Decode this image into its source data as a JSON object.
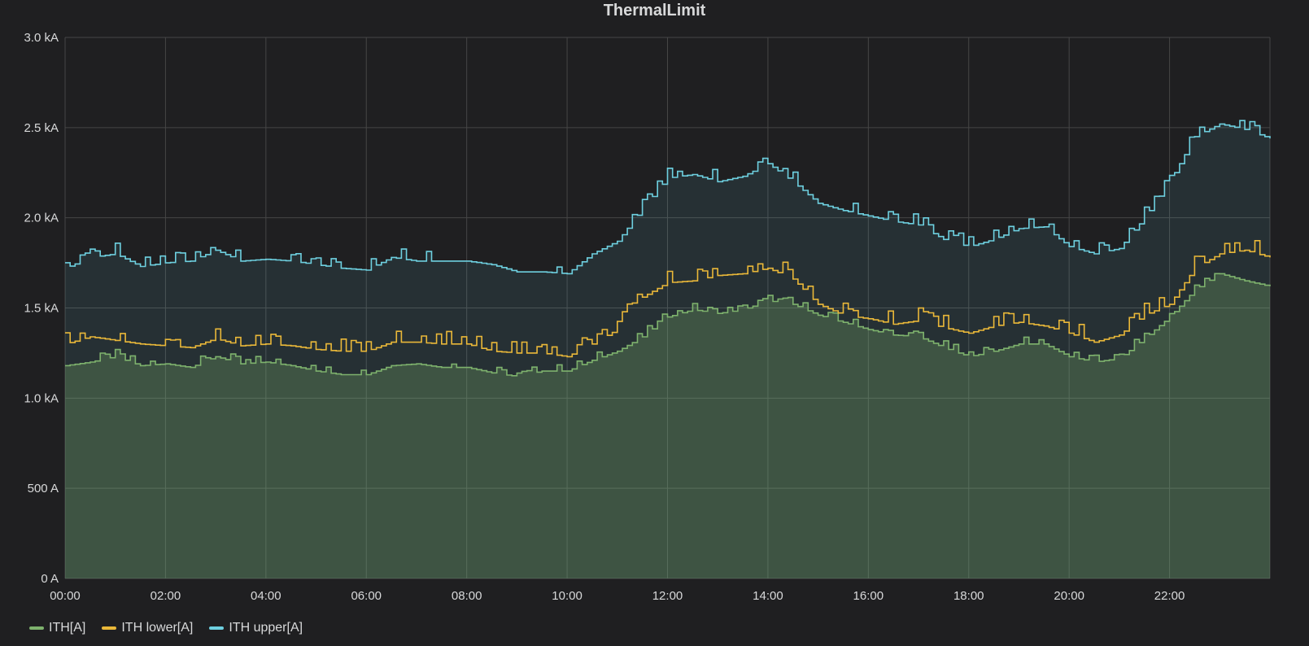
{
  "panel": {
    "title": "ThermalLimit"
  },
  "colors": {
    "ith": "#7eb26d",
    "ith_lower": "#eab839",
    "ith_upper": "#6ed0e0",
    "grid": "#464646",
    "text": "#d8d9da"
  },
  "chart_data": {
    "type": "line",
    "title": "ThermalLimit",
    "xlabel": "",
    "ylabel": "",
    "x_unit": "hour",
    "xlim": [
      0,
      24
    ],
    "x_ticks": [
      0,
      2,
      4,
      6,
      8,
      10,
      12,
      14,
      16,
      18,
      20,
      22
    ],
    "x_tick_labels": [
      "00:00",
      "02:00",
      "04:00",
      "06:00",
      "08:00",
      "10:00",
      "12:00",
      "14:00",
      "16:00",
      "18:00",
      "20:00",
      "22:00"
    ],
    "ylim": [
      0,
      3000
    ],
    "y_ticks": [
      0,
      500,
      1000,
      1500,
      2000,
      2500,
      3000
    ],
    "y_tick_labels": [
      "0 A",
      "500 A",
      "1.0 kA",
      "1.5 kA",
      "2.0 kA",
      "2.5 kA",
      "3.0 kA"
    ],
    "grid": true,
    "legend_position": "bottom-left",
    "series": [
      {
        "name": "ITH[A]",
        "color": "#7eb26d",
        "fill": true,
        "x": [
          0,
          0.5,
          1,
          1.5,
          2,
          2.5,
          3,
          3.5,
          4,
          4.5,
          5,
          5.5,
          6,
          6.5,
          7,
          7.5,
          8,
          8.5,
          9,
          9.5,
          10,
          10.5,
          11,
          11.5,
          12,
          12.5,
          13,
          13.5,
          14,
          14.5,
          15,
          15.5,
          16,
          16.5,
          17,
          17.5,
          18,
          18.5,
          19,
          19.5,
          20,
          20.5,
          21,
          21.5,
          22,
          22.5,
          23,
          23.5,
          24
        ],
        "values": [
          1180,
          1200,
          1230,
          1180,
          1190,
          1170,
          1230,
          1190,
          1200,
          1180,
          1150,
          1130,
          1130,
          1180,
          1190,
          1170,
          1170,
          1140,
          1120,
          1150,
          1150,
          1210,
          1260,
          1340,
          1450,
          1490,
          1470,
          1490,
          1540,
          1520,
          1460,
          1420,
          1380,
          1350,
          1340,
          1280,
          1230,
          1260,
          1300,
          1300,
          1230,
          1200,
          1220,
          1330,
          1450,
          1600,
          1690,
          1650,
          1620
        ]
      },
      {
        "name": "ITH lower[A]",
        "color": "#eab839",
        "fill": false,
        "x": [
          0,
          0.5,
          1,
          1.5,
          2,
          2.5,
          3,
          3.5,
          4,
          4.5,
          5,
          5.5,
          6,
          6.5,
          7,
          7.5,
          8,
          8.5,
          9,
          9.5,
          10,
          10.5,
          11,
          11.5,
          12,
          12.5,
          13,
          13.5,
          14,
          14.5,
          15,
          15.5,
          16,
          16.5,
          17,
          17.5,
          18,
          18.5,
          19,
          19.5,
          20,
          20.5,
          21,
          21.5,
          22,
          22.5,
          23,
          23.5,
          24
        ],
        "values": [
          1300,
          1340,
          1320,
          1300,
          1290,
          1280,
          1330,
          1290,
          1300,
          1290,
          1270,
          1260,
          1260,
          1310,
          1310,
          1300,
          1300,
          1260,
          1250,
          1250,
          1230,
          1300,
          1380,
          1560,
          1640,
          1650,
          1680,
          1690,
          1720,
          1660,
          1520,
          1460,
          1440,
          1410,
          1430,
          1390,
          1360,
          1400,
          1420,
          1400,
          1360,
          1310,
          1350,
          1460,
          1520,
          1720,
          1800,
          1820,
          1780
        ]
      },
      {
        "name": "ITH upper[A]",
        "color": "#6ed0e0",
        "fill": true,
        "x": [
          0,
          0.5,
          1,
          1.5,
          2,
          2.5,
          3,
          3.5,
          4,
          4.5,
          5,
          5.5,
          6,
          6.5,
          7,
          7.5,
          8,
          8.5,
          9,
          9.5,
          10,
          10.5,
          11,
          11.5,
          12,
          12.5,
          13,
          13.5,
          14,
          14.5,
          15,
          15.5,
          16,
          16.5,
          17,
          17.5,
          18,
          18.5,
          19,
          19.5,
          20,
          20.5,
          21,
          21.5,
          22,
          22.5,
          23,
          23.5,
          24
        ],
        "values": [
          1720,
          1780,
          1800,
          1730,
          1750,
          1760,
          1820,
          1760,
          1770,
          1760,
          1740,
          1720,
          1710,
          1780,
          1760,
          1760,
          1760,
          1740,
          1700,
          1700,
          1690,
          1800,
          1870,
          2050,
          2220,
          2240,
          2200,
          2230,
          2300,
          2200,
          2080,
          2040,
          2010,
          1980,
          1960,
          1880,
          1840,
          1880,
          1940,
          1950,
          1840,
          1800,
          1830,
          2000,
          2200,
          2450,
          2520,
          2490,
          2440
        ]
      }
    ]
  }
}
